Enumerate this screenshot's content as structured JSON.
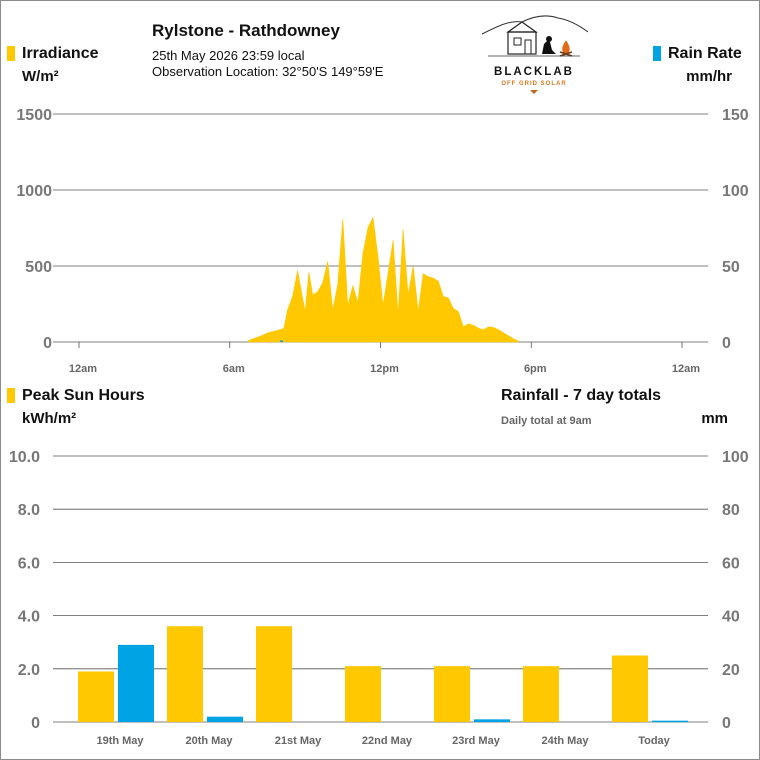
{
  "header": {
    "station": "Rylstone - Rathdowney",
    "datetime": "25th May 2026  23:59 local",
    "location": "Observation Location: 32°50'S 149°59'E"
  },
  "logo": {
    "brand": "BLACKLAB",
    "tagline": "OFF GRID SOLAR"
  },
  "colors": {
    "irradiance": "#ffc800",
    "rain": "#00a4e4",
    "grid": "#555555",
    "axis_text": "#777777"
  },
  "top_chart": {
    "left_label": "Irradiance",
    "left_unit": "W/m²",
    "right_label": "Rain Rate",
    "right_unit": "mm/hr",
    "left_ticks": [
      "1500",
      "1000",
      "500",
      "0"
    ],
    "right_ticks": [
      "150",
      "100",
      "50",
      "0"
    ],
    "x_ticks": [
      "12am",
      "6am",
      "12pm",
      "6pm",
      "12am"
    ]
  },
  "bottom_chart": {
    "left_label": "Peak Sun Hours",
    "left_unit": "kWh/m²",
    "right_label": "Rainfall - 7 day totals",
    "right_note": "Daily total at 9am",
    "right_unit": "mm",
    "left_ticks": [
      "10.0",
      "8.0",
      "6.0",
      "4.0",
      "2.0",
      "0"
    ],
    "right_ticks": [
      "100",
      "80",
      "60",
      "40",
      "20",
      "0"
    ]
  },
  "chart_data": [
    {
      "type": "area",
      "ylim": [
        0,
        1500
      ],
      "y2lim": [
        0,
        150
      ],
      "xlim_hours": [
        0,
        24
      ],
      "series": [
        {
          "name": "Irradiance",
          "x_hours": [
            6.75,
            7.0,
            7.25,
            7.5,
            7.75,
            8.0,
            8.15,
            8.3,
            8.5,
            8.7,
            8.9,
            9.0,
            9.15,
            9.3,
            9.5,
            9.7,
            9.9,
            10.1,
            10.3,
            10.5,
            10.7,
            10.9,
            11.1,
            11.3,
            11.5,
            11.7,
            11.9,
            12.1,
            12.3,
            12.5,
            12.7,
            12.9,
            13.1,
            13.3,
            13.5,
            13.7,
            13.9,
            14.1,
            14.3,
            14.5,
            14.7,
            14.9,
            15.1,
            15.3,
            15.5,
            15.7,
            15.9,
            16.1,
            16.3,
            16.5,
            16.7,
            16.9,
            17.1,
            17.3,
            17.5
          ],
          "values": [
            10,
            25,
            40,
            60,
            70,
            80,
            90,
            210,
            300,
            470,
            290,
            200,
            460,
            310,
            330,
            390,
            530,
            210,
            380,
            810,
            240,
            370,
            260,
            580,
            750,
            820,
            560,
            240,
            450,
            670,
            180,
            740,
            310,
            500,
            200,
            450,
            430,
            420,
            400,
            300,
            290,
            220,
            200,
            100,
            120,
            110,
            90,
            80,
            100,
            95,
            80,
            60,
            40,
            20,
            5
          ]
        },
        {
          "name": "Rain Rate",
          "x_hours": [
            8.0
          ],
          "values": [
            0.5
          ]
        }
      ]
    },
    {
      "type": "bar",
      "categories": [
        "19th May",
        "20th May",
        "21st May",
        "22nd May",
        "23rd May",
        "24th May",
        "Today"
      ],
      "ylim": [
        0,
        10
      ],
      "y2lim": [
        0,
        100
      ],
      "series": [
        {
          "name": "Peak Sun Hours",
          "values": [
            1.9,
            3.6,
            3.6,
            2.1,
            2.1,
            2.1,
            2.5
          ]
        },
        {
          "name": "Rainfall",
          "values": [
            29,
            2,
            0,
            0,
            1,
            0,
            0.5
          ]
        }
      ]
    }
  ]
}
